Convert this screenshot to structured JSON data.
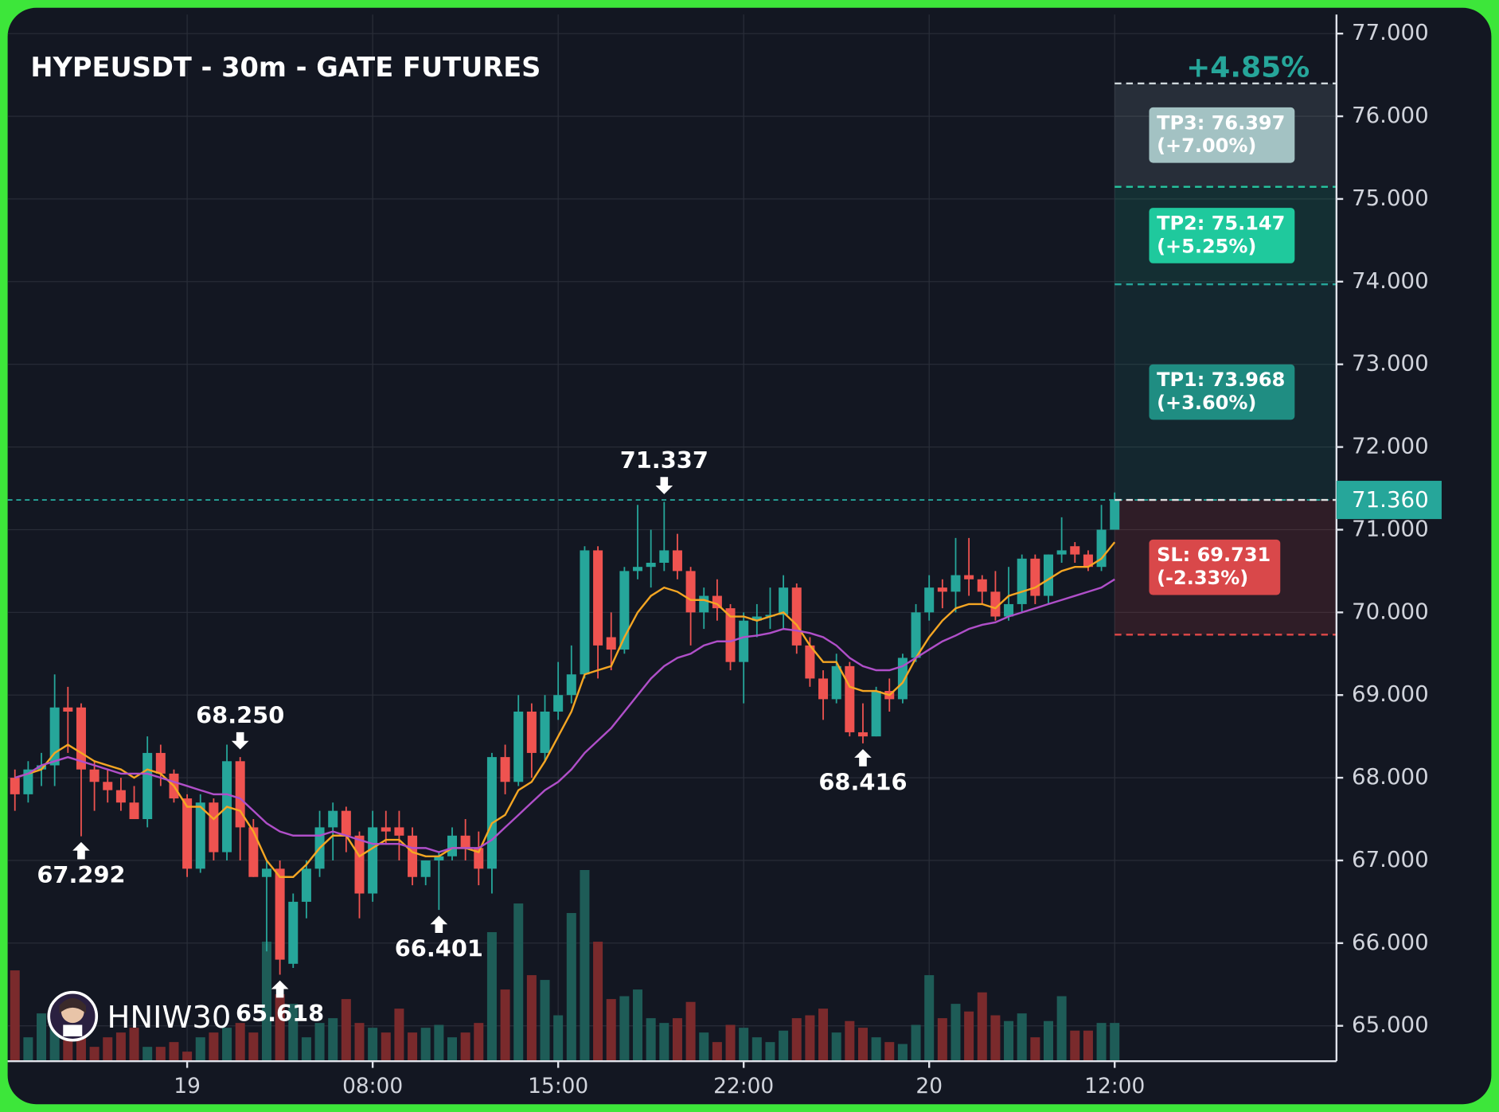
{
  "chart_data": {
    "type": "candlestick",
    "title": "HYPEUSDT - 30m - GATE FUTURES",
    "watermark": "HNIW30",
    "change": {
      "value": 4.85,
      "label": "+4.85%"
    },
    "categories": [
      null,
      null,
      null,
      null,
      null,
      null,
      null,
      null,
      null,
      null,
      null,
      null,
      null,
      "19",
      null,
      null,
      null,
      null,
      null,
      null,
      null,
      null,
      null,
      null,
      null,
      null,
      null,
      "08:00",
      null,
      null,
      null,
      null,
      null,
      null,
      null,
      null,
      null,
      null,
      null,
      null,
      null,
      "15:00",
      null,
      null,
      null,
      null,
      null,
      null,
      null,
      null,
      null,
      null,
      null,
      null,
      null,
      "22:00",
      null,
      null,
      null,
      null,
      null,
      null,
      null,
      null,
      null,
      null,
      null,
      null,
      null,
      "20",
      null,
      null,
      null,
      null,
      null,
      null,
      null,
      null,
      null,
      null,
      null,
      null,
      null,
      "12:00"
    ],
    "open": [
      68.0,
      67.8,
      68.1,
      68.15,
      68.85,
      68.85,
      68.1,
      67.95,
      67.85,
      67.7,
      67.5,
      68.3,
      68.05,
      67.75,
      66.9,
      67.7,
      67.1,
      68.2,
      67.4,
      66.8,
      66.9,
      65.75,
      66.5,
      66.9,
      67.4,
      67.6,
      67.3,
      66.6,
      67.4,
      67.4,
      67.3,
      66.8,
      67.0,
      67.05,
      67.3,
      67.15,
      66.9,
      68.25,
      67.95,
      68.8,
      68.3,
      68.8,
      69.0,
      69.25,
      70.75,
      69.7,
      69.55,
      70.5,
      70.55,
      70.6,
      70.75,
      70.5,
      70.0,
      70.2,
      70.05,
      69.4,
      69.9,
      69.95,
      69.97,
      70.3,
      69.6,
      69.2,
      68.95,
      69.35,
      68.55,
      68.5,
      69.05,
      68.95,
      69.45,
      70.0,
      70.3,
      70.25,
      70.45,
      70.4,
      70.25,
      69.95,
      70.1,
      70.65,
      70.2,
      70.7,
      70.8,
      70.7,
      70.55,
      71.0
    ],
    "high": [
      68.1,
      68.2,
      68.3,
      69.25,
      69.1,
      68.9,
      68.2,
      68.1,
      68.0,
      67.9,
      68.5,
      68.4,
      68.1,
      67.8,
      67.8,
      67.75,
      68.4,
      68.25,
      67.5,
      67.0,
      67.0,
      66.6,
      67.0,
      67.6,
      67.7,
      67.65,
      67.35,
      67.6,
      67.6,
      67.6,
      67.4,
      67.0,
      67.1,
      67.4,
      67.5,
      67.35,
      68.3,
      68.4,
      69.0,
      68.9,
      69.0,
      69.4,
      69.6,
      70.8,
      70.8,
      70.0,
      70.55,
      71.3,
      71.0,
      71.337,
      70.95,
      70.55,
      70.3,
      70.4,
      70.1,
      70.0,
      70.1,
      70.3,
      70.45,
      70.35,
      69.7,
      69.3,
      69.5,
      69.4,
      68.9,
      69.1,
      69.2,
      69.5,
      70.1,
      70.45,
      70.4,
      70.9,
      70.9,
      70.45,
      70.5,
      70.55,
      70.7,
      70.7,
      70.7,
      71.15,
      70.85,
      70.75,
      71.3,
      71.45
    ],
    "low": [
      67.6,
      67.7,
      67.9,
      67.9,
      68.3,
      67.292,
      67.6,
      67.7,
      67.6,
      67.5,
      67.4,
      67.9,
      67.7,
      66.8,
      66.85,
      67.0,
      67.0,
      67.0,
      66.8,
      65.9,
      65.618,
      65.7,
      66.3,
      66.8,
      67.0,
      67.1,
      66.3,
      66.5,
      67.2,
      67.0,
      66.7,
      66.7,
      66.401,
      67.0,
      67.0,
      66.7,
      66.6,
      67.8,
      67.9,
      68.0,
      68.2,
      68.7,
      68.9,
      69.2,
      69.2,
      69.3,
      69.5,
      70.4,
      70.3,
      70.5,
      70.4,
      69.6,
      69.8,
      69.9,
      69.3,
      68.9,
      69.7,
      69.8,
      69.8,
      69.5,
      69.1,
      68.7,
      68.9,
      68.5,
      68.416,
      68.5,
      68.8,
      68.9,
      69.4,
      69.9,
      70.05,
      70.0,
      70.2,
      70.1,
      69.9,
      69.9,
      70.0,
      70.1,
      70.1,
      70.6,
      70.6,
      70.5,
      70.5,
      71.0
    ],
    "close": [
      67.8,
      68.1,
      68.15,
      68.85,
      68.8,
      68.1,
      67.95,
      67.85,
      67.7,
      67.5,
      68.3,
      68.05,
      67.75,
      66.9,
      67.7,
      67.1,
      68.2,
      67.4,
      66.8,
      66.9,
      65.8,
      66.5,
      66.9,
      67.4,
      67.6,
      67.3,
      66.6,
      67.4,
      67.35,
      67.3,
      66.8,
      67.0,
      67.05,
      67.3,
      67.15,
      66.9,
      68.25,
      67.95,
      68.8,
      68.3,
      68.8,
      69.0,
      69.25,
      70.75,
      69.6,
      69.55,
      70.5,
      70.55,
      70.6,
      70.75,
      70.5,
      70.0,
      70.2,
      70.05,
      69.4,
      69.9,
      69.95,
      69.97,
      70.3,
      69.6,
      69.2,
      68.95,
      69.35,
      68.55,
      68.5,
      69.05,
      68.95,
      69.45,
      70.0,
      70.3,
      70.25,
      70.45,
      70.4,
      70.25,
      69.95,
      70.1,
      70.65,
      70.2,
      70.7,
      70.75,
      70.7,
      70.55,
      71.0,
      71.36
    ],
    "volume": [
      95,
      25,
      50,
      60,
      40,
      30,
      15,
      25,
      30,
      35,
      15,
      15,
      20,
      10,
      25,
      30,
      35,
      40,
      30,
      125,
      70,
      60,
      25,
      40,
      45,
      65,
      40,
      35,
      30,
      55,
      30,
      35,
      38,
      25,
      30,
      40,
      135,
      75,
      165,
      90,
      85,
      48,
      155,
      200,
      125,
      65,
      68,
      75,
      45,
      40,
      45,
      62,
      30,
      20,
      38,
      35,
      25,
      20,
      32,
      45,
      48,
      55,
      30,
      42,
      35,
      25,
      20,
      18,
      38,
      90,
      45,
      60,
      52,
      72,
      48,
      42,
      50,
      25,
      42,
      68,
      32,
      32,
      40,
      40
    ],
    "volume_lim": [
      0,
      220
    ],
    "up_color": "#26a69a",
    "down_color": "#ef5350",
    "volume_up_color": "#1e5c57",
    "volume_down_color": "#7a2a2c",
    "lines": [
      {
        "color": "#f5a623",
        "values": [
          68.0,
          68.05,
          68.1,
          68.3,
          68.4,
          68.3,
          68.2,
          68.15,
          68.1,
          68.0,
          68.1,
          68.05,
          67.9,
          67.65,
          67.65,
          67.5,
          67.65,
          67.6,
          67.35,
          67.0,
          66.8,
          66.8,
          66.95,
          67.15,
          67.3,
          67.3,
          67.05,
          67.15,
          67.25,
          67.25,
          67.1,
          67.05,
          67.05,
          67.15,
          67.15,
          67.1,
          67.45,
          67.55,
          67.85,
          67.95,
          68.2,
          68.5,
          68.8,
          69.25,
          69.3,
          69.35,
          69.7,
          70.0,
          70.2,
          70.3,
          70.25,
          70.15,
          70.15,
          70.1,
          69.95,
          69.95,
          69.9,
          69.95,
          70.0,
          69.85,
          69.6,
          69.4,
          69.4,
          69.1,
          69.05,
          69.05,
          69.0,
          69.15,
          69.45,
          69.7,
          69.9,
          70.05,
          70.1,
          70.1,
          70.05,
          70.2,
          70.25,
          70.3,
          70.4,
          70.5,
          70.55,
          70.55,
          70.65,
          70.85
        ]
      },
      {
        "color": "#b04fc9",
        "values": [
          68.0,
          68.05,
          68.15,
          68.2,
          68.25,
          68.2,
          68.15,
          68.1,
          68.05,
          68.05,
          68.05,
          68.0,
          67.95,
          67.9,
          67.85,
          67.8,
          67.8,
          67.75,
          67.6,
          67.45,
          67.35,
          67.3,
          67.3,
          67.3,
          67.35,
          67.3,
          67.25,
          67.2,
          67.2,
          67.2,
          67.15,
          67.15,
          67.1,
          67.15,
          67.15,
          67.15,
          67.25,
          67.4,
          67.55,
          67.7,
          67.85,
          67.95,
          68.1,
          68.3,
          68.45,
          68.6,
          68.8,
          69.0,
          69.2,
          69.35,
          69.45,
          69.5,
          69.6,
          69.65,
          69.65,
          69.7,
          69.72,
          69.75,
          69.8,
          69.78,
          69.75,
          69.7,
          69.6,
          69.45,
          69.35,
          69.3,
          69.3,
          69.35,
          69.45,
          69.55,
          69.65,
          69.72,
          69.8,
          69.85,
          69.88,
          69.95,
          70.0,
          70.05,
          70.1,
          70.15,
          70.2,
          70.25,
          70.3,
          70.4
        ]
      }
    ],
    "swing_points": {
      "values": [
        67.292,
        68.25,
        65.618,
        66.401,
        71.337,
        68.416
      ],
      "value_labels": [
        "67.292",
        "68.250",
        "65.618",
        "66.401",
        "71.337",
        "68.416"
      ],
      "kinds": [
        "low",
        "high",
        "low",
        "low",
        "high",
        "low"
      ]
    },
    "entry": {
      "value": 71.36,
      "label": "71.360",
      "color": "#26a69a"
    },
    "levels": [
      {
        "value": 76.397,
        "label": "TP3: 76.397",
        "change": 7.0,
        "change_label": "(+7.00%)",
        "color": "#a3c2c3",
        "line_color": "#cfd8dc"
      },
      {
        "value": 75.147,
        "label": "TP2: 75.147",
        "change": 5.25,
        "change_label": "(+5.25%)",
        "color": "#1fc99d",
        "line_color": "#26c6a0"
      },
      {
        "value": 73.968,
        "label": "TP1: 73.968",
        "change": 3.6,
        "change_label": "(+3.60%)",
        "color": "#1f8d82",
        "line_color": "#26a69a"
      },
      {
        "value": 69.731,
        "label": "SL: 69.731",
        "change": -2.33,
        "change_label": "(-2.33%)",
        "color": "#d9484a",
        "line_color": "#e04848"
      }
    ],
    "ylim": [
      64.572,
      77.231
    ],
    "yticks": [
      {
        "value": 65,
        "label": "65.000"
      },
      {
        "value": 66,
        "label": "66.000"
      },
      {
        "value": 67,
        "label": "67.000"
      },
      {
        "value": 68,
        "label": "68.000"
      },
      {
        "value": 69,
        "label": "69.000"
      },
      {
        "value": 70,
        "label": "70.000"
      },
      {
        "value": 71,
        "label": "71.000"
      },
      {
        "value": 72,
        "label": "72.000"
      },
      {
        "value": 73,
        "label": "73.000"
      },
      {
        "value": 74,
        "label": "74.000"
      },
      {
        "value": 75,
        "label": "75.000"
      },
      {
        "value": 76,
        "label": "76.000"
      },
      {
        "value": 77,
        "label": "77.000"
      }
    ],
    "grid": true
  }
}
